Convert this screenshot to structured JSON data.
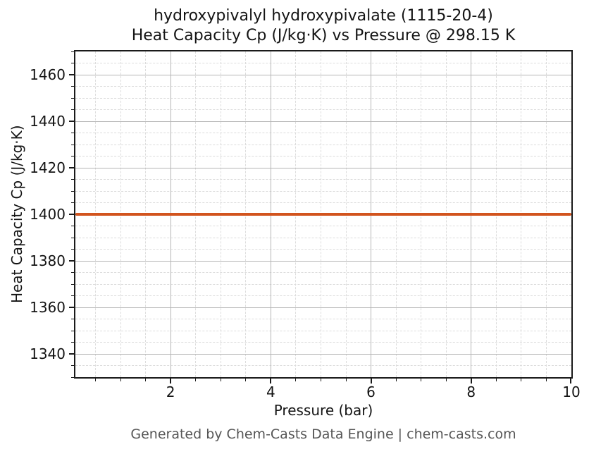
{
  "chart_data": {
    "type": "line",
    "title_line1": "hydroxypivalyl hydroxypivalate (1115-20-4)",
    "title_line2": "Heat Capacity Cp (J/kg·K) vs Pressure @ 298.15 K",
    "xlabel": "Pressure (bar)",
    "ylabel": "Heat Capacity Cp (J/kg·K)",
    "xlim": [
      0.1,
      10
    ],
    "ylim": [
      1330,
      1470
    ],
    "x_major_ticks": [
      2,
      4,
      6,
      8,
      10
    ],
    "x_minor_tick_step": 0.5,
    "y_major_ticks": [
      1340,
      1360,
      1380,
      1400,
      1420,
      1440,
      1460
    ],
    "y_minor_tick_step": 5,
    "grid": {
      "major": "on",
      "minor": "on"
    },
    "legend_position": "none",
    "series": [
      {
        "name": "Heat Capacity Cp",
        "color": "#D2541E",
        "x": [
          0.1,
          1,
          2,
          3,
          4,
          5,
          6,
          7,
          8,
          9,
          10
        ],
        "y": [
          1400,
          1400,
          1400,
          1400,
          1400,
          1400,
          1400,
          1400,
          1400,
          1400,
          1400
        ]
      }
    ],
    "colors": {
      "line": "#D2541E",
      "spine": "#1a1a1a",
      "grid_major": "#b5b5b5",
      "grid_minor": "#dcdcdc",
      "text": "#141414",
      "footer_text": "#565656",
      "background": "#ffffff"
    }
  },
  "footer": {
    "text": "Generated by Chem-Casts Data Engine | chem-casts.com"
  }
}
